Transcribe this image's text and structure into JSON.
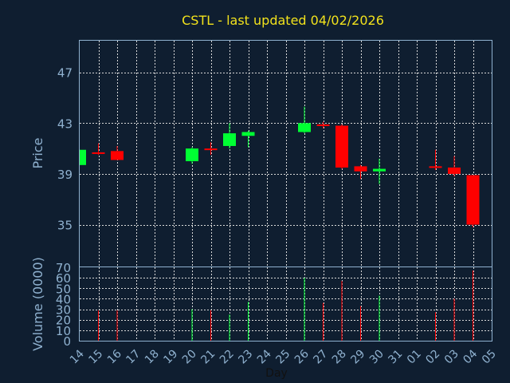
{
  "chart_data": {
    "type": "candlestick",
    "title": "CSTL - last updated 04/02/2026",
    "xlabel": "Day",
    "price_panel": {
      "ylabel": "Price",
      "ylim": [
        31.7,
        49.5
      ],
      "yticks": [
        35,
        39,
        43,
        47
      ],
      "grid": true
    },
    "volume_panel": {
      "ylabel": "Volume (0000)",
      "ylim": [
        0,
        70
      ],
      "yticks": [
        0,
        10,
        20,
        30,
        40,
        50,
        60,
        70
      ],
      "grid": true
    },
    "x_ticks": [
      "14",
      "15",
      "16",
      "17",
      "18",
      "19",
      "20",
      "21",
      "22",
      "23",
      "24",
      "25",
      "26",
      "27",
      "28",
      "29",
      "30",
      "31",
      "01",
      "02",
      "03",
      "04",
      "05"
    ],
    "candles": [
      {
        "x": 0.0,
        "open": 39.7,
        "high": 40.9,
        "low": 39.7,
        "close": 40.9,
        "volume": 0
      },
      {
        "x": 1.0,
        "open": 40.7,
        "high": 41.4,
        "low": 40.5,
        "close": 40.6,
        "volume": 29
      },
      {
        "x": 2.0,
        "open": 40.8,
        "high": 41.2,
        "low": 40.1,
        "close": 40.1,
        "volume": 29
      },
      {
        "x": 6.0,
        "open": 40.0,
        "high": 41.1,
        "low": 39.8,
        "close": 41.0,
        "volume": 30
      },
      {
        "x": 7.0,
        "open": 41.0,
        "high": 41.5,
        "low": 40.5,
        "close": 40.9,
        "volume": 29
      },
      {
        "x": 8.0,
        "open": 41.2,
        "high": 43.0,
        "low": 41.0,
        "close": 42.2,
        "volume": 25
      },
      {
        "x": 9.0,
        "open": 42.0,
        "high": 42.4,
        "low": 41.1,
        "close": 42.3,
        "volume": 37
      },
      {
        "x": 12.0,
        "open": 42.3,
        "high": 44.3,
        "low": 42.2,
        "close": 43.0,
        "volume": 60
      },
      {
        "x": 13.0,
        "open": 42.9,
        "high": 43.1,
        "low": 42.6,
        "close": 42.8,
        "volume": 36
      },
      {
        "x": 14.0,
        "open": 42.8,
        "high": 42.9,
        "low": 39.4,
        "close": 39.5,
        "volume": 57
      },
      {
        "x": 15.0,
        "open": 39.6,
        "high": 39.7,
        "low": 38.6,
        "close": 39.2,
        "volume": 33
      },
      {
        "x": 16.0,
        "open": 39.2,
        "high": 40.2,
        "low": 38.2,
        "close": 39.4,
        "volume": 43
      },
      {
        "x": 19.0,
        "open": 39.6,
        "high": 40.9,
        "low": 39.3,
        "close": 39.5,
        "volume": 27
      },
      {
        "x": 20.0,
        "open": 39.5,
        "high": 40.4,
        "low": 38.8,
        "close": 39.0,
        "volume": 40
      },
      {
        "x": 21.0,
        "open": 38.9,
        "high": 38.9,
        "low": 34.8,
        "close": 35.0,
        "volume": 67
      }
    ],
    "colors": {
      "background": "#0f1e30",
      "up": "#00ff33",
      "down": "#ff0000",
      "axis": "#8fb1cf",
      "title": "#f2e21c",
      "grid": "#d9d9d9"
    }
  }
}
